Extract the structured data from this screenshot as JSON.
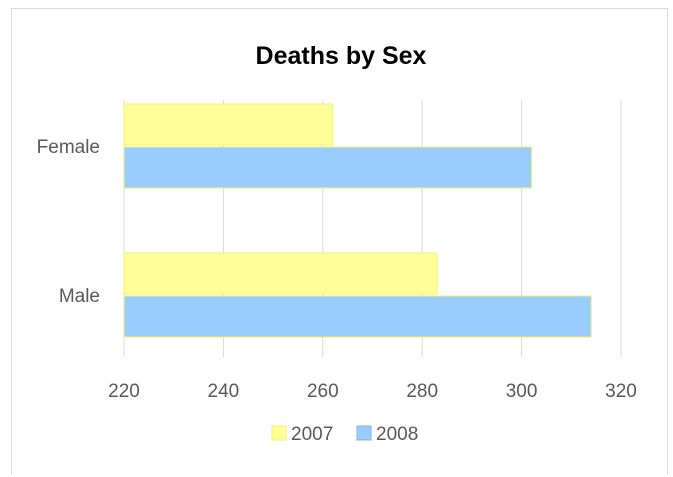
{
  "chart_data": {
    "type": "bar",
    "orientation": "horizontal",
    "title": "Deaths by Sex",
    "xlabel": "",
    "ylabel": "",
    "categories": [
      "Female",
      "Male"
    ],
    "series": [
      {
        "name": "2007",
        "values": [
          262,
          283
        ],
        "color": "#ffff99"
      },
      {
        "name": "2008",
        "values": [
          302,
          314
        ],
        "color": "#99ccff"
      }
    ],
    "xlim": [
      220,
      320
    ],
    "x_ticks": [
      220,
      240,
      260,
      280,
      300,
      320
    ],
    "grid": true,
    "legend_position": "bottom"
  }
}
